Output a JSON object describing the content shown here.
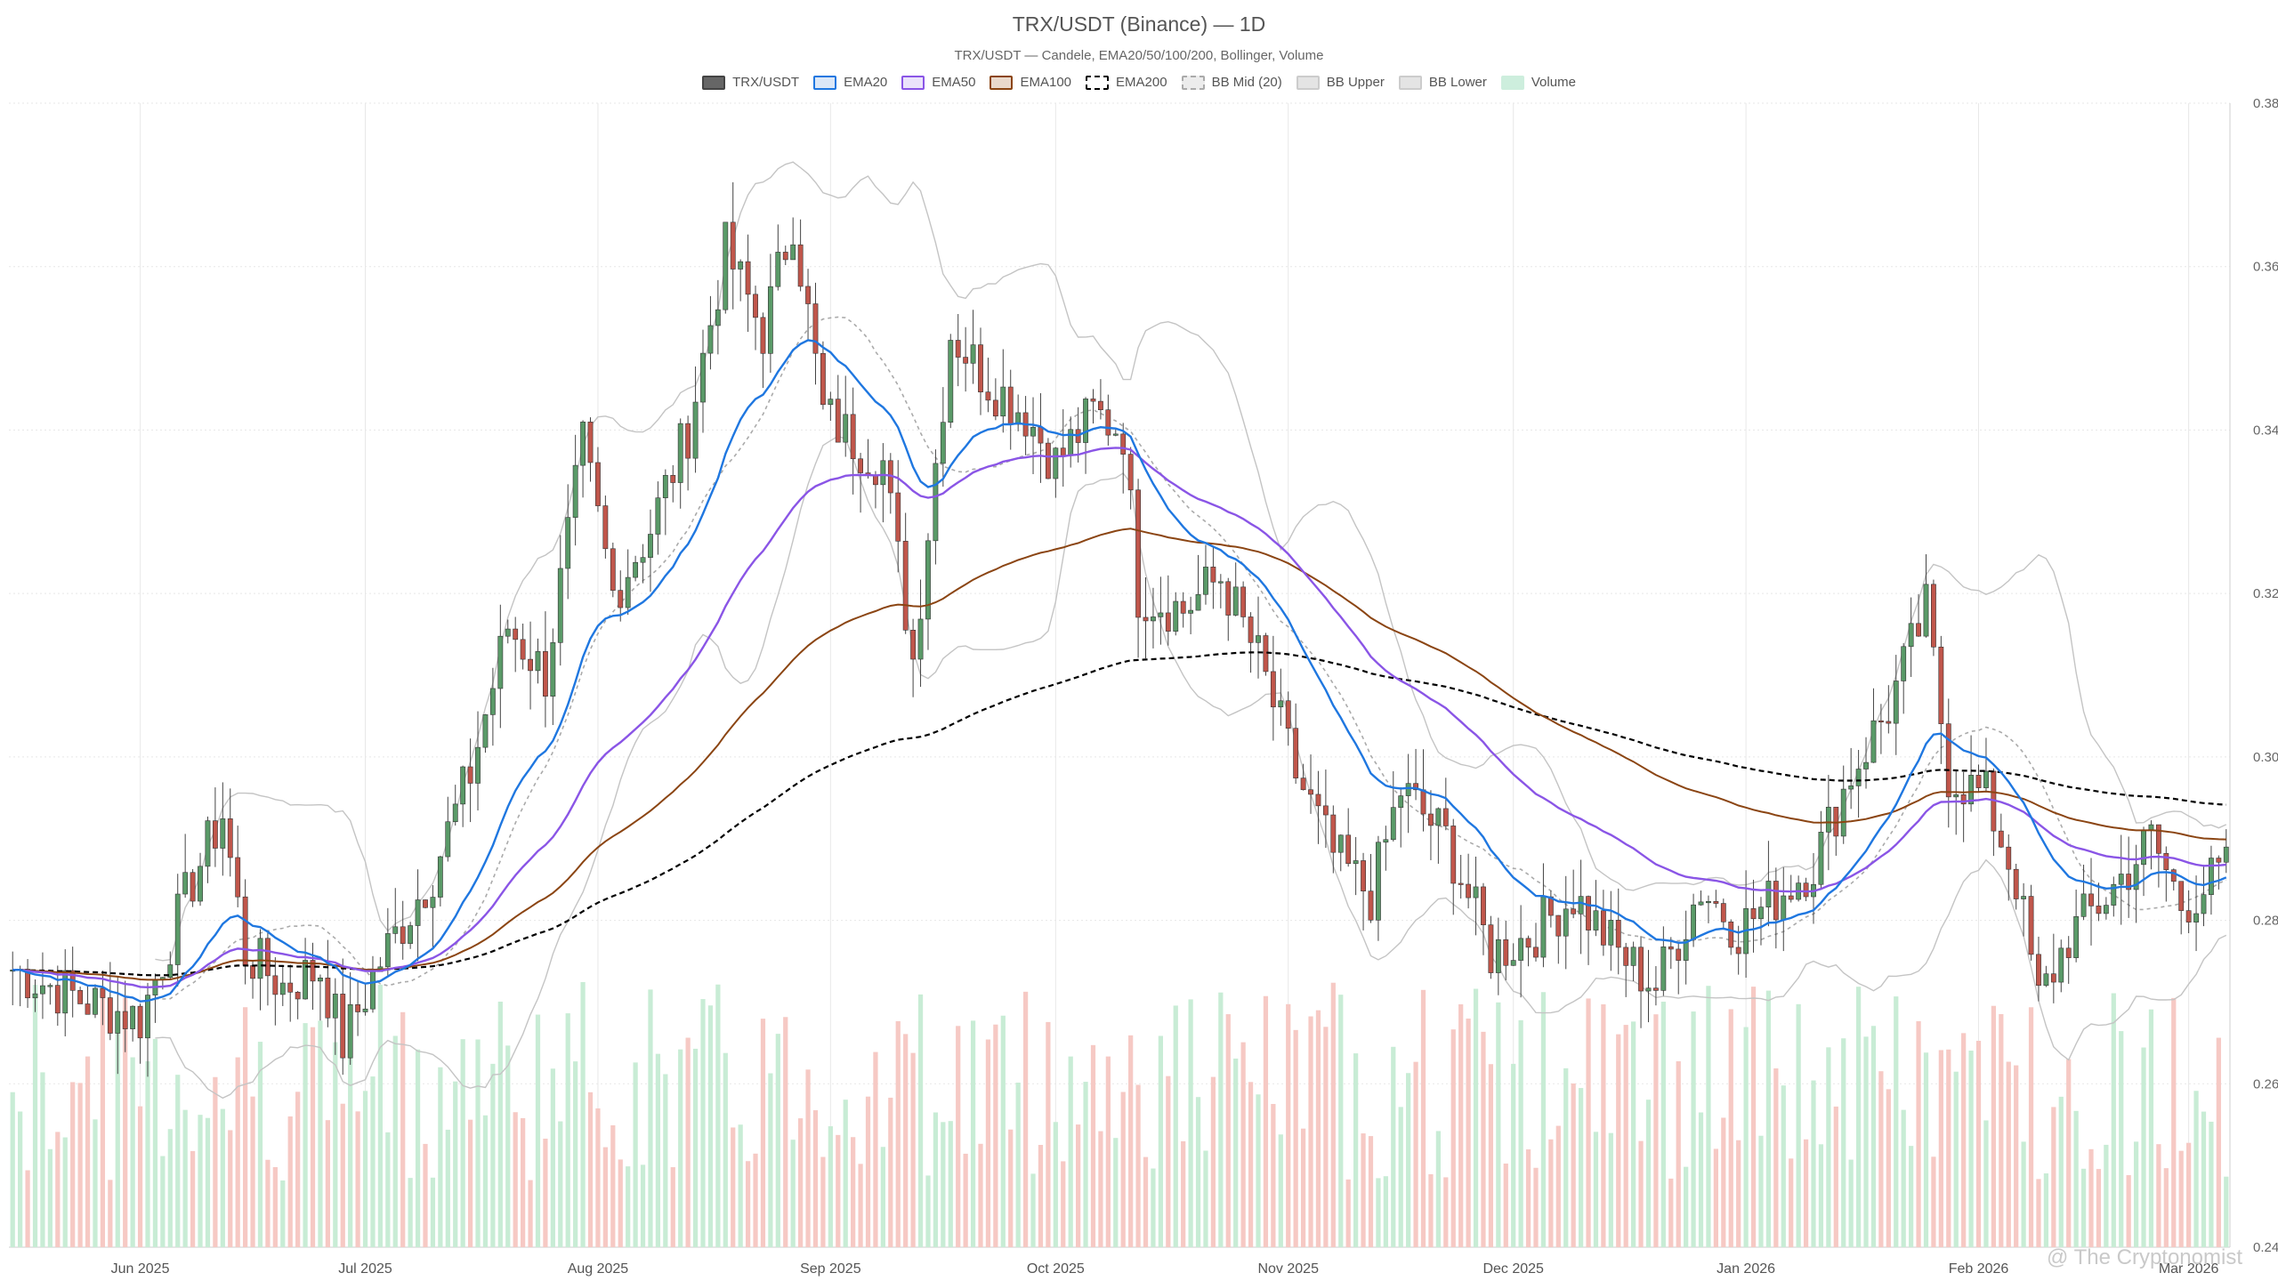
{
  "title": "TRX/USDT (Binance) — 1D",
  "subtitle": "TRX/USDT — Candele, EMA20/50/100/200, Bollinger, Volume",
  "watermark": "@ The Cryptonomist",
  "legend": [
    {
      "label": "TRX/USDT",
      "fill": "#666666",
      "border": "#444444",
      "dash": false
    },
    {
      "label": "EMA20",
      "fill": "#dbe7f7",
      "border": "#1f77e0",
      "dash": false
    },
    {
      "label": "EMA50",
      "fill": "#ebe3fb",
      "border": "#8a55e6",
      "dash": false
    },
    {
      "label": "EMA100",
      "fill": "#ead9cc",
      "border": "#8b4513",
      "dash": false
    },
    {
      "label": "EMA200",
      "fill": "#ffffff",
      "border": "#000000",
      "dash": true
    },
    {
      "label": "BB Mid (20)",
      "fill": "#ececec",
      "border": "#aaaaaa",
      "dash": true
    },
    {
      "label": "BB Upper",
      "fill": "#e4e4e4",
      "border": "#cccccc",
      "dash": false
    },
    {
      "label": "BB Lower",
      "fill": "#e4e4e4",
      "border": "#cccccc",
      "dash": false
    },
    {
      "label": "Volume",
      "fill": "#cdeedd",
      "border": "#cdeedd",
      "dash": false
    }
  ],
  "chart_data": {
    "type": "candlestick",
    "xlabel": "",
    "ylabel": "",
    "x_ticks": [
      "Jun 2025",
      "Jul 2025",
      "Aug 2025",
      "Sep 2025",
      "Oct 2025",
      "Nov 2025",
      "Dec 2025",
      "Jan 2026",
      "Feb 2026",
      "Mar 2026"
    ],
    "y_ticks": [
      "0.24",
      "0.26",
      "0.28",
      "0.30",
      "0.32",
      "0.34",
      "0.36",
      "0.38"
    ],
    "ylim": [
      0.24,
      0.38
    ],
    "date_range": [
      "2025-05-15",
      "2026-03-06"
    ],
    "grid": true,
    "legend_position": "top-center",
    "colors": {
      "up": "#5a9a68",
      "down": "#c0564b",
      "vol_up": "#c8ecd5",
      "vol_down": "#f6c9c4",
      "ema20": "#1f77e0",
      "ema50": "#8a55e6",
      "ema100": "#8b4513",
      "ema200": "#000000",
      "bb_mid": "#aaaaaa",
      "bb_band": "#c4c4c4"
    },
    "close_keypoints": [
      [
        "2025-05-15",
        0.274
      ],
      [
        "2025-05-25",
        0.27
      ],
      [
        "2025-06-01",
        0.268
      ],
      [
        "2025-06-08",
        0.285
      ],
      [
        "2025-06-12",
        0.293
      ],
      [
        "2025-06-15",
        0.276
      ],
      [
        "2025-06-20",
        0.272
      ],
      [
        "2025-06-25",
        0.274
      ],
      [
        "2025-06-28",
        0.265
      ],
      [
        "2025-07-03",
        0.275
      ],
      [
        "2025-07-10",
        0.286
      ],
      [
        "2025-07-15",
        0.298
      ],
      [
        "2025-07-20",
        0.316
      ],
      [
        "2025-07-25",
        0.31
      ],
      [
        "2025-07-30",
        0.338
      ],
      [
        "2025-08-03",
        0.32
      ],
      [
        "2025-08-08",
        0.328
      ],
      [
        "2025-08-13",
        0.34
      ],
      [
        "2025-08-18",
        0.362
      ],
      [
        "2025-08-23",
        0.352
      ],
      [
        "2025-08-27",
        0.366
      ],
      [
        "2025-08-31",
        0.342
      ],
      [
        "2025-09-05",
        0.338
      ],
      [
        "2025-09-08",
        0.336
      ],
      [
        "2025-09-12",
        0.312
      ],
      [
        "2025-09-17",
        0.352
      ],
      [
        "2025-09-22",
        0.346
      ],
      [
        "2025-09-27",
        0.342
      ],
      [
        "2025-10-01",
        0.336
      ],
      [
        "2025-10-06",
        0.342
      ],
      [
        "2025-10-10",
        0.34
      ],
      [
        "2025-10-12",
        0.32
      ],
      [
        "2025-10-18",
        0.318
      ],
      [
        "2025-10-23",
        0.322
      ],
      [
        "2025-10-28",
        0.312
      ],
      [
        "2025-11-02",
        0.298
      ],
      [
        "2025-11-07",
        0.288
      ],
      [
        "2025-11-12",
        0.283
      ],
      [
        "2025-11-16",
        0.296
      ],
      [
        "2025-11-22",
        0.29
      ],
      [
        "2025-11-28",
        0.276
      ],
      [
        "2025-12-03",
        0.278
      ],
      [
        "2025-12-09",
        0.283
      ],
      [
        "2025-12-15",
        0.276
      ],
      [
        "2025-12-20",
        0.272
      ],
      [
        "2025-12-26",
        0.284
      ],
      [
        "2025-12-31",
        0.279
      ],
      [
        "2026-01-04",
        0.282
      ],
      [
        "2026-01-10",
        0.287
      ],
      [
        "2026-01-15",
        0.298
      ],
      [
        "2026-01-20",
        0.306
      ],
      [
        "2026-01-25",
        0.318
      ],
      [
        "2026-01-28",
        0.298
      ],
      [
        "2026-02-02",
        0.295
      ],
      [
        "2026-02-06",
        0.285
      ],
      [
        "2026-02-09",
        0.27
      ],
      [
        "2026-02-13",
        0.278
      ],
      [
        "2026-02-19",
        0.284
      ],
      [
        "2026-02-24",
        0.29
      ],
      [
        "2026-02-28",
        0.282
      ],
      [
        "2026-03-06",
        0.286
      ]
    ]
  }
}
